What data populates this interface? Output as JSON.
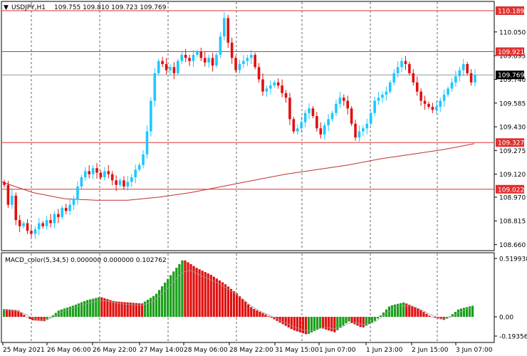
{
  "header": {
    "symbol_label": "USDJPY,H1",
    "ohlc_text": "109.755 109.810 109.723 109.769"
  },
  "macd_header": {
    "label": "MACD_color(5,34,5) 0.000000 0.000000 0.102762"
  },
  "colors": {
    "bull": "#1ec8ff",
    "bear": "#e01010",
    "macd_up": "#1aa01a",
    "macd_down": "#e01010",
    "level_line": "#e03030",
    "ma_line": "#c03030",
    "bid_line": "#8c9cb0",
    "grid": "#000000"
  },
  "price_axis": {
    "ticks": [
      "110.050",
      "109.895",
      "109.740",
      "109.585",
      "109.430",
      "109.275",
      "109.120",
      "108.970",
      "108.815",
      "108.660"
    ]
  },
  "macd_axis": {
    "ticks": [
      "0.519938",
      "0.00",
      "-0.193564"
    ]
  },
  "time_axis": {
    "labels": [
      "25 May 2021",
      "26 May 06:00",
      "26 May 22:00",
      "27 May 14:00",
      "28 May 06:00",
      "28 May 22:00",
      "31 May 15:00",
      "1 Jun 07:00",
      "1 Jun 23:00",
      "2 Jun 15:00",
      "3 Jun 07:00"
    ]
  },
  "levels": [
    {
      "name": "level-110189",
      "label": "110.189",
      "value": 110.189
    },
    {
      "name": "level-109921",
      "label": "109.921",
      "value": 109.921
    },
    {
      "name": "level-109327",
      "label": "109.327",
      "value": 109.327
    },
    {
      "name": "level-109022",
      "label": "109.022",
      "value": 109.022
    }
  ],
  "bid": {
    "label": "109.769",
    "value": 109.769
  },
  "chart_data": {
    "type": "candlestick",
    "symbol": "USDJPY",
    "timeframe": "H1",
    "price_range": [
      108.63,
      110.24
    ],
    "closes": [
      109.05,
      108.92,
      108.98,
      108.82,
      108.78,
      108.8,
      108.75,
      108.73,
      108.76,
      108.8,
      108.78,
      108.82,
      108.8,
      108.86,
      108.84,
      108.9,
      108.88,
      108.92,
      108.96,
      109.04,
      109.1,
      109.14,
      109.12,
      109.16,
      109.13,
      109.1,
      109.14,
      109.12,
      109.08,
      109.05,
      109.08,
      109.04,
      109.07,
      109.1,
      109.15,
      109.18,
      109.25,
      109.4,
      109.6,
      109.78,
      109.86,
      109.84,
      109.8,
      109.82,
      109.78,
      109.86,
      109.9,
      109.88,
      109.86,
      109.9,
      109.92,
      109.88,
      109.85,
      109.88,
      109.83,
      109.9,
      110.02,
      110.14,
      109.98,
      109.88,
      109.8,
      109.84,
      109.86,
      109.88,
      109.9,
      109.82,
      109.74,
      109.66,
      109.68,
      109.7,
      109.72,
      109.7,
      109.65,
      109.62,
      109.48,
      109.4,
      109.42,
      109.46,
      109.52,
      109.55,
      109.5,
      109.42,
      109.38,
      109.44,
      109.48,
      109.52,
      109.58,
      109.62,
      109.6,
      109.55,
      109.45,
      109.36,
      109.4,
      109.42,
      109.45,
      109.52,
      109.6,
      109.62,
      109.64,
      109.66,
      109.72,
      109.78,
      109.82,
      109.86,
      109.84,
      109.78,
      109.72,
      109.66,
      109.6,
      109.58,
      109.56,
      109.54,
      109.56,
      109.6,
      109.64,
      109.68,
      109.72,
      109.76,
      109.8,
      109.84,
      109.78,
      109.72,
      109.769
    ],
    "ma_series": [
      109.07,
      109.0,
      108.96,
      108.95,
      108.95,
      108.97,
      109.0,
      109.04,
      109.08,
      109.12,
      109.15,
      109.18,
      109.22,
      109.25,
      109.28,
      109.32
    ],
    "macd_histogram": [
      0.07,
      0.06,
      -0.03,
      -0.04,
      0.06,
      0.1,
      0.15,
      0.18,
      0.14,
      0.13,
      0.12,
      0.2,
      0.36,
      0.52,
      0.44,
      0.38,
      0.3,
      0.2,
      0.08,
      0.02,
      -0.05,
      -0.12,
      -0.16,
      -0.1,
      -0.14,
      -0.04,
      -0.1,
      -0.03,
      0.1,
      0.13,
      0.08,
      0.0,
      -0.03,
      0.07,
      0.1
    ],
    "legend": "MACD_color(5,34,5)"
  }
}
